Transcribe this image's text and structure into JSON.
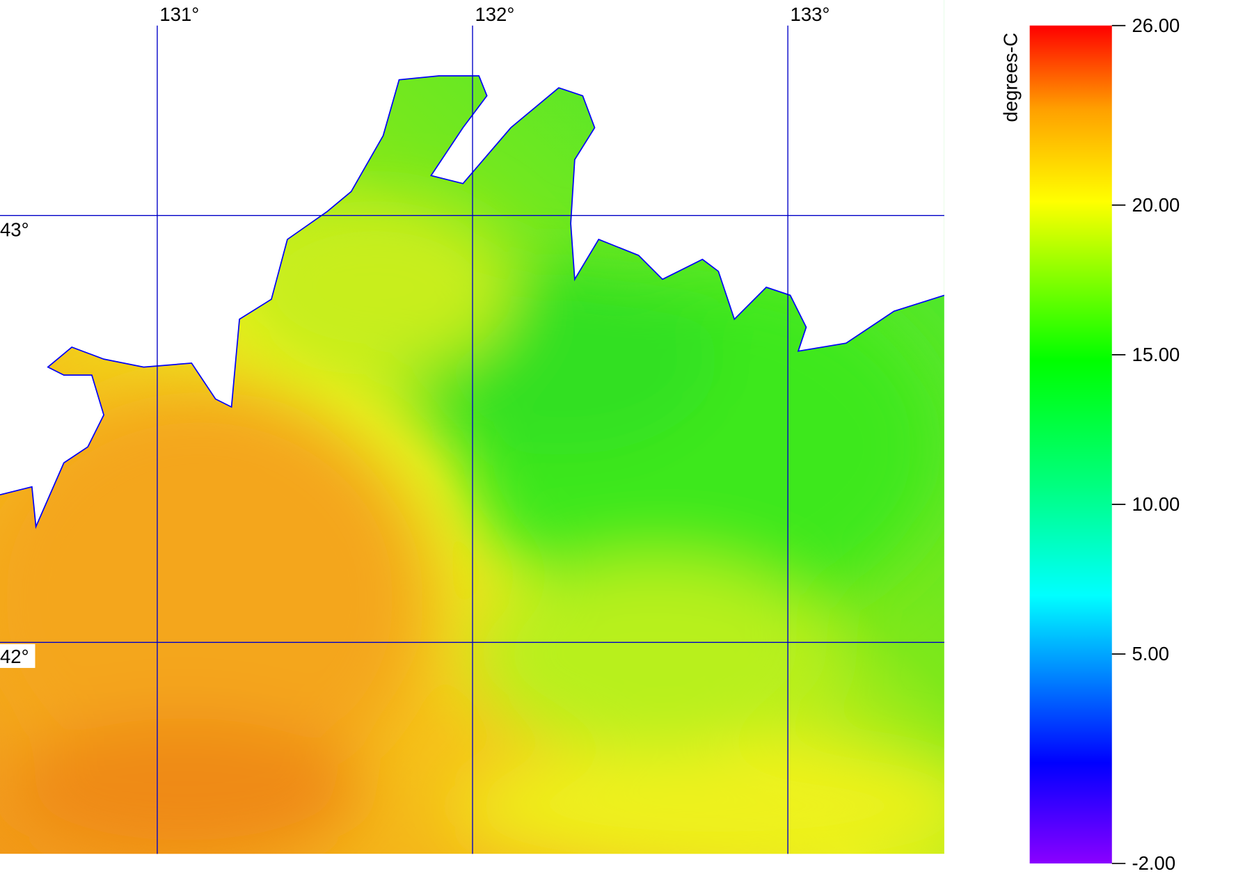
{
  "map": {
    "lon_ticks": [
      {
        "value": 131,
        "label": "131°"
      },
      {
        "value": 132,
        "label": "132°"
      },
      {
        "value": 133,
        "label": "133°"
      }
    ],
    "lat_ticks": [
      {
        "value": 43,
        "label": "43°"
      },
      {
        "value": 42,
        "label": "42°"
      }
    ]
  },
  "colorbar": {
    "title": "degrees-C",
    "range": [
      -2,
      26
    ],
    "ticks": [
      {
        "value": 26,
        "label": "26.00"
      },
      {
        "value": 20,
        "label": "20.00"
      },
      {
        "value": 15,
        "label": "15.00"
      },
      {
        "value": 10,
        "label": "10.00"
      },
      {
        "value": 5,
        "label": "5.00"
      },
      {
        "value": -2,
        "label": "-2.00"
      }
    ]
  }
}
